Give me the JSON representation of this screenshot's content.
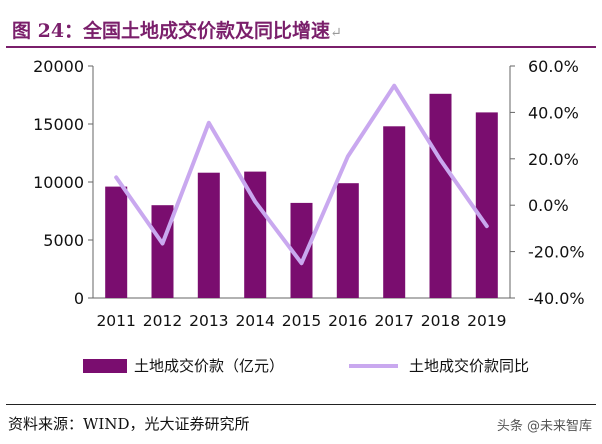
{
  "title": "图 24：全国土地成交价款及同比增速",
  "return_mark": "↵",
  "source": "资料来源：WIND，光大证券研究所",
  "watermark": "头条 @未来智库",
  "colors": {
    "bar": "#7a0d6f",
    "line": "#c9a8ef",
    "title": "#7a1f6b"
  },
  "chart_data": {
    "type": "bar+line",
    "categories": [
      "2011",
      "2012",
      "2013",
      "2014",
      "2015",
      "2016",
      "2017",
      "2018",
      "2019"
    ],
    "series": [
      {
        "name": "土地成交价款（亿元）",
        "type": "bar",
        "axis": "left",
        "values": [
          9600,
          8000,
          10800,
          10900,
          8200,
          9900,
          14800,
          17600,
          16000
        ]
      },
      {
        "name": "土地成交价款同比",
        "type": "line",
        "axis": "right",
        "values": [
          0.12,
          -0.165,
          0.355,
          0.015,
          -0.25,
          0.21,
          0.515,
          0.195,
          -0.09
        ]
      }
    ],
    "yleft": {
      "min": 0,
      "max": 20000,
      "ticks": [
        "0",
        "5000",
        "10000",
        "15000",
        "20000"
      ]
    },
    "yright": {
      "min": -0.4,
      "max": 0.6,
      "ticks": [
        "-40.0%",
        "-20.0%",
        "0.0%",
        "20.0%",
        "40.0%",
        "60.0%"
      ]
    },
    "legend_position": "bottom",
    "grid": false
  }
}
